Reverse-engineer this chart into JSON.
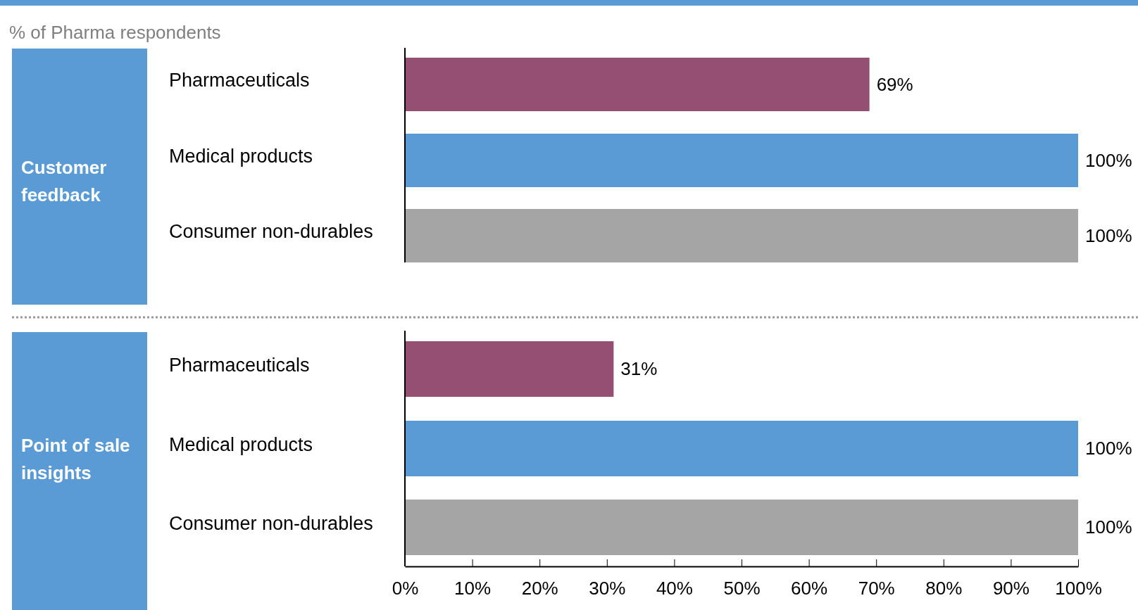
{
  "chart_data": [
    {
      "type": "bar",
      "orientation": "horizontal",
      "title": "Customer feedback",
      "subtitle": "% of Pharma respondents",
      "categories": [
        "Pharmaceuticals",
        "Medical products",
        "Consumer non-durables"
      ],
      "values": [
        69,
        100,
        100
      ],
      "colors": [
        "#954f72",
        "#5b9bd5",
        "#a5a5a5"
      ],
      "value_labels": [
        "69%",
        "100%",
        "100%"
      ],
      "xlim": [
        0,
        100
      ],
      "tick_labels": "y"
    },
    {
      "type": "bar",
      "orientation": "horizontal",
      "title": "Point of sale insights",
      "categories": [
        "Pharmaceuticals",
        "Medical products",
        "Consumer non-durables"
      ],
      "values": [
        31,
        100,
        100
      ],
      "colors": [
        "#954f72",
        "#5b9bd5",
        "#a5a5a5"
      ],
      "value_labels": [
        "31%",
        "100%",
        "100%"
      ],
      "xlim": [
        0,
        100
      ],
      "xticks": [
        {
          "value": 0,
          "label": "0%"
        },
        {
          "value": 10,
          "label": "10%"
        },
        {
          "value": 20,
          "label": "20%"
        },
        {
          "value": 30,
          "label": "30%"
        },
        {
          "value": 40,
          "label": "40%"
        },
        {
          "value": 50,
          "label": "50%"
        },
        {
          "value": 60,
          "label": "60%"
        },
        {
          "value": 70,
          "label": "70%"
        },
        {
          "value": 80,
          "label": "80%"
        },
        {
          "value": 90,
          "label": "90%"
        },
        {
          "value": 100,
          "label": "100%"
        }
      ]
    }
  ]
}
